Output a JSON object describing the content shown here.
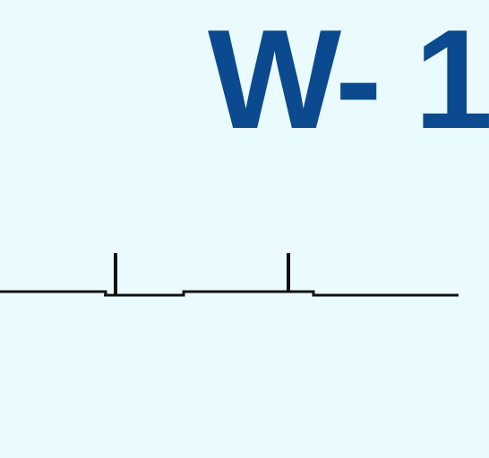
{
  "figure": {
    "label": "W- 1"
  },
  "colors": {
    "background": "#eafbff",
    "label": "#0b4a8e",
    "line": "#111111"
  }
}
